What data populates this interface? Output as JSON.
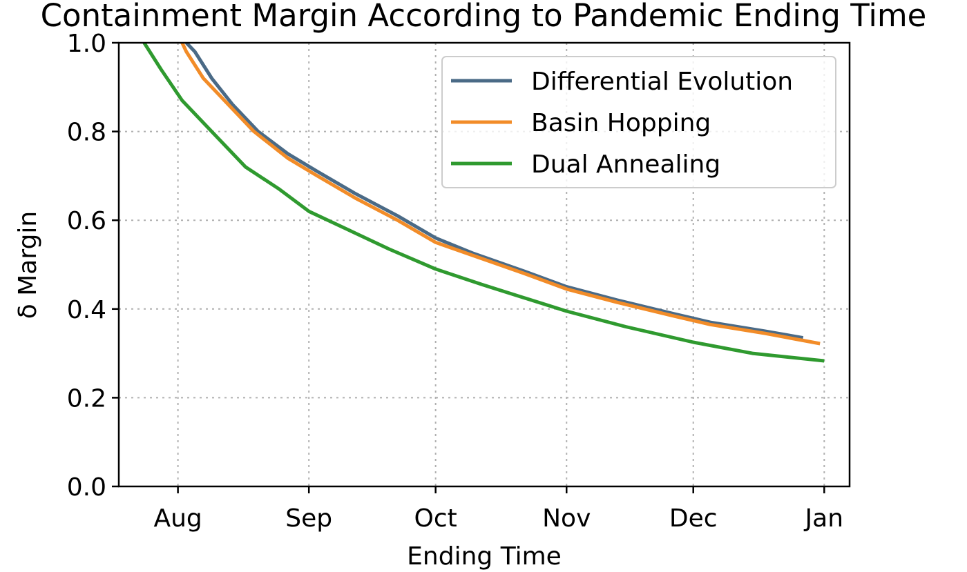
{
  "chart_data": {
    "type": "line",
    "title": "Containment Margin According to Pandemic Ending Time",
    "xlabel": "Ending Time",
    "ylabel": "δ Margin",
    "x_ticks": [
      "2020-08-01",
      "2020-09-01",
      "2020-10-01",
      "2020-11-01",
      "2020-12-01",
      "2021-01-01"
    ],
    "x_tick_labels": [
      "Aug",
      "Sep",
      "Oct",
      "Nov",
      "Dec",
      "Jan"
    ],
    "xlim": [
      "2020-07-18",
      "2021-01-07"
    ],
    "ylim": [
      0.0,
      1.0
    ],
    "y_ticks": [
      0.0,
      0.2,
      0.4,
      0.6,
      0.8,
      1.0
    ],
    "y_tick_labels": [
      "0.0",
      "0.2",
      "0.4",
      "0.6",
      "0.8",
      "1.0"
    ],
    "grid": true,
    "legend_position": "top-right",
    "series": [
      {
        "name": "Differential Evolution",
        "color": "#4a6a86",
        "x": [
          "2020-08-03",
          "2020-08-05",
          "2020-08-09",
          "2020-08-14",
          "2020-08-20",
          "2020-08-27",
          "2020-09-03",
          "2020-09-12",
          "2020-09-22",
          "2020-10-01",
          "2020-10-10",
          "2020-10-22",
          "2020-11-01",
          "2020-11-13",
          "2020-11-26",
          "2020-12-05",
          "2020-12-18",
          "2020-12-27"
        ],
        "y": [
          1.0,
          0.98,
          0.92,
          0.86,
          0.8,
          0.75,
          0.71,
          0.66,
          0.61,
          0.56,
          0.525,
          0.485,
          0.45,
          0.42,
          0.39,
          0.37,
          0.35,
          0.335
        ]
      },
      {
        "name": "Basin Hopping",
        "color": "#f28c28",
        "x": [
          "2020-08-02",
          "2020-08-03",
          "2020-08-07",
          "2020-08-13",
          "2020-08-19",
          "2020-08-27",
          "2020-09-03",
          "2020-09-12",
          "2020-09-22",
          "2020-10-01",
          "2020-10-10",
          "2020-10-22",
          "2020-11-01",
          "2020-11-13",
          "2020-11-26",
          "2020-12-05",
          "2020-12-18",
          "2020-12-31"
        ],
        "y": [
          1.0,
          0.98,
          0.92,
          0.86,
          0.8,
          0.74,
          0.7,
          0.65,
          0.6,
          0.55,
          0.52,
          0.48,
          0.445,
          0.415,
          0.385,
          0.365,
          0.345,
          0.322
        ]
      },
      {
        "name": "Dual Annealing",
        "color": "#2f9a2f",
        "x": [
          "2020-07-24",
          "2020-07-28",
          "2020-08-02",
          "2020-08-09",
          "2020-08-17",
          "2020-08-25",
          "2020-09-01",
          "2020-09-10",
          "2020-09-20",
          "2020-10-01",
          "2020-10-12",
          "2020-10-22",
          "2020-11-01",
          "2020-11-15",
          "2020-12-01",
          "2020-12-15",
          "2021-01-01"
        ],
        "y": [
          1.0,
          0.94,
          0.87,
          0.8,
          0.72,
          0.67,
          0.62,
          0.58,
          0.535,
          0.49,
          0.455,
          0.425,
          0.395,
          0.36,
          0.325,
          0.3,
          0.283
        ]
      }
    ]
  }
}
